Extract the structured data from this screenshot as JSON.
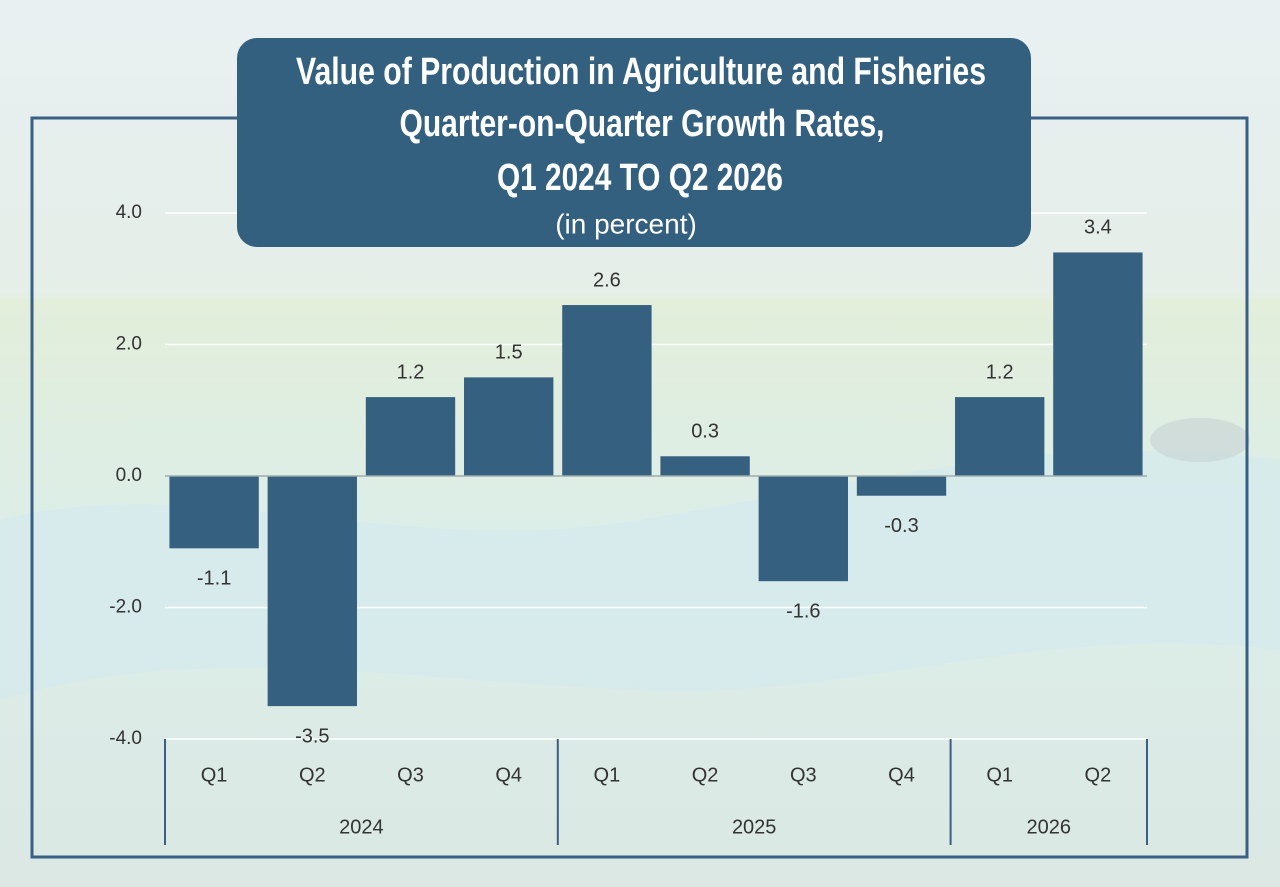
{
  "chart_data": {
    "type": "bar",
    "title": [
      "Value of Production in Agriculture and Fisheries",
      "Quarter-on-Quarter Growth Rates,",
      "Q1 2024 TO Q2 2026"
    ],
    "subtitle": "(in percent)",
    "categories": [
      "Q1",
      "Q2",
      "Q3",
      "Q4",
      "Q1",
      "Q2",
      "Q3",
      "Q4",
      "Q1",
      "Q2"
    ],
    "x_groups": [
      {
        "label": "2024",
        "span": 4
      },
      {
        "label": "2025",
        "span": 4
      },
      {
        "label": "2026",
        "span": 2
      }
    ],
    "values": [
      -1.1,
      -3.5,
      1.2,
      1.5,
      2.6,
      0.3,
      -1.6,
      -0.3,
      1.2,
      3.4
    ],
    "color": "#36607f",
    "ylim": [
      -4,
      4
    ],
    "yticks": [
      {
        "value": -4,
        "label": "-4.0"
      },
      {
        "value": -2,
        "label": "-2.0"
      },
      {
        "value": 0,
        "label": "0.0"
      },
      {
        "value": 2,
        "label": "2.0"
      },
      {
        "value": 4,
        "label": "4.0"
      }
    ],
    "grid": true
  }
}
